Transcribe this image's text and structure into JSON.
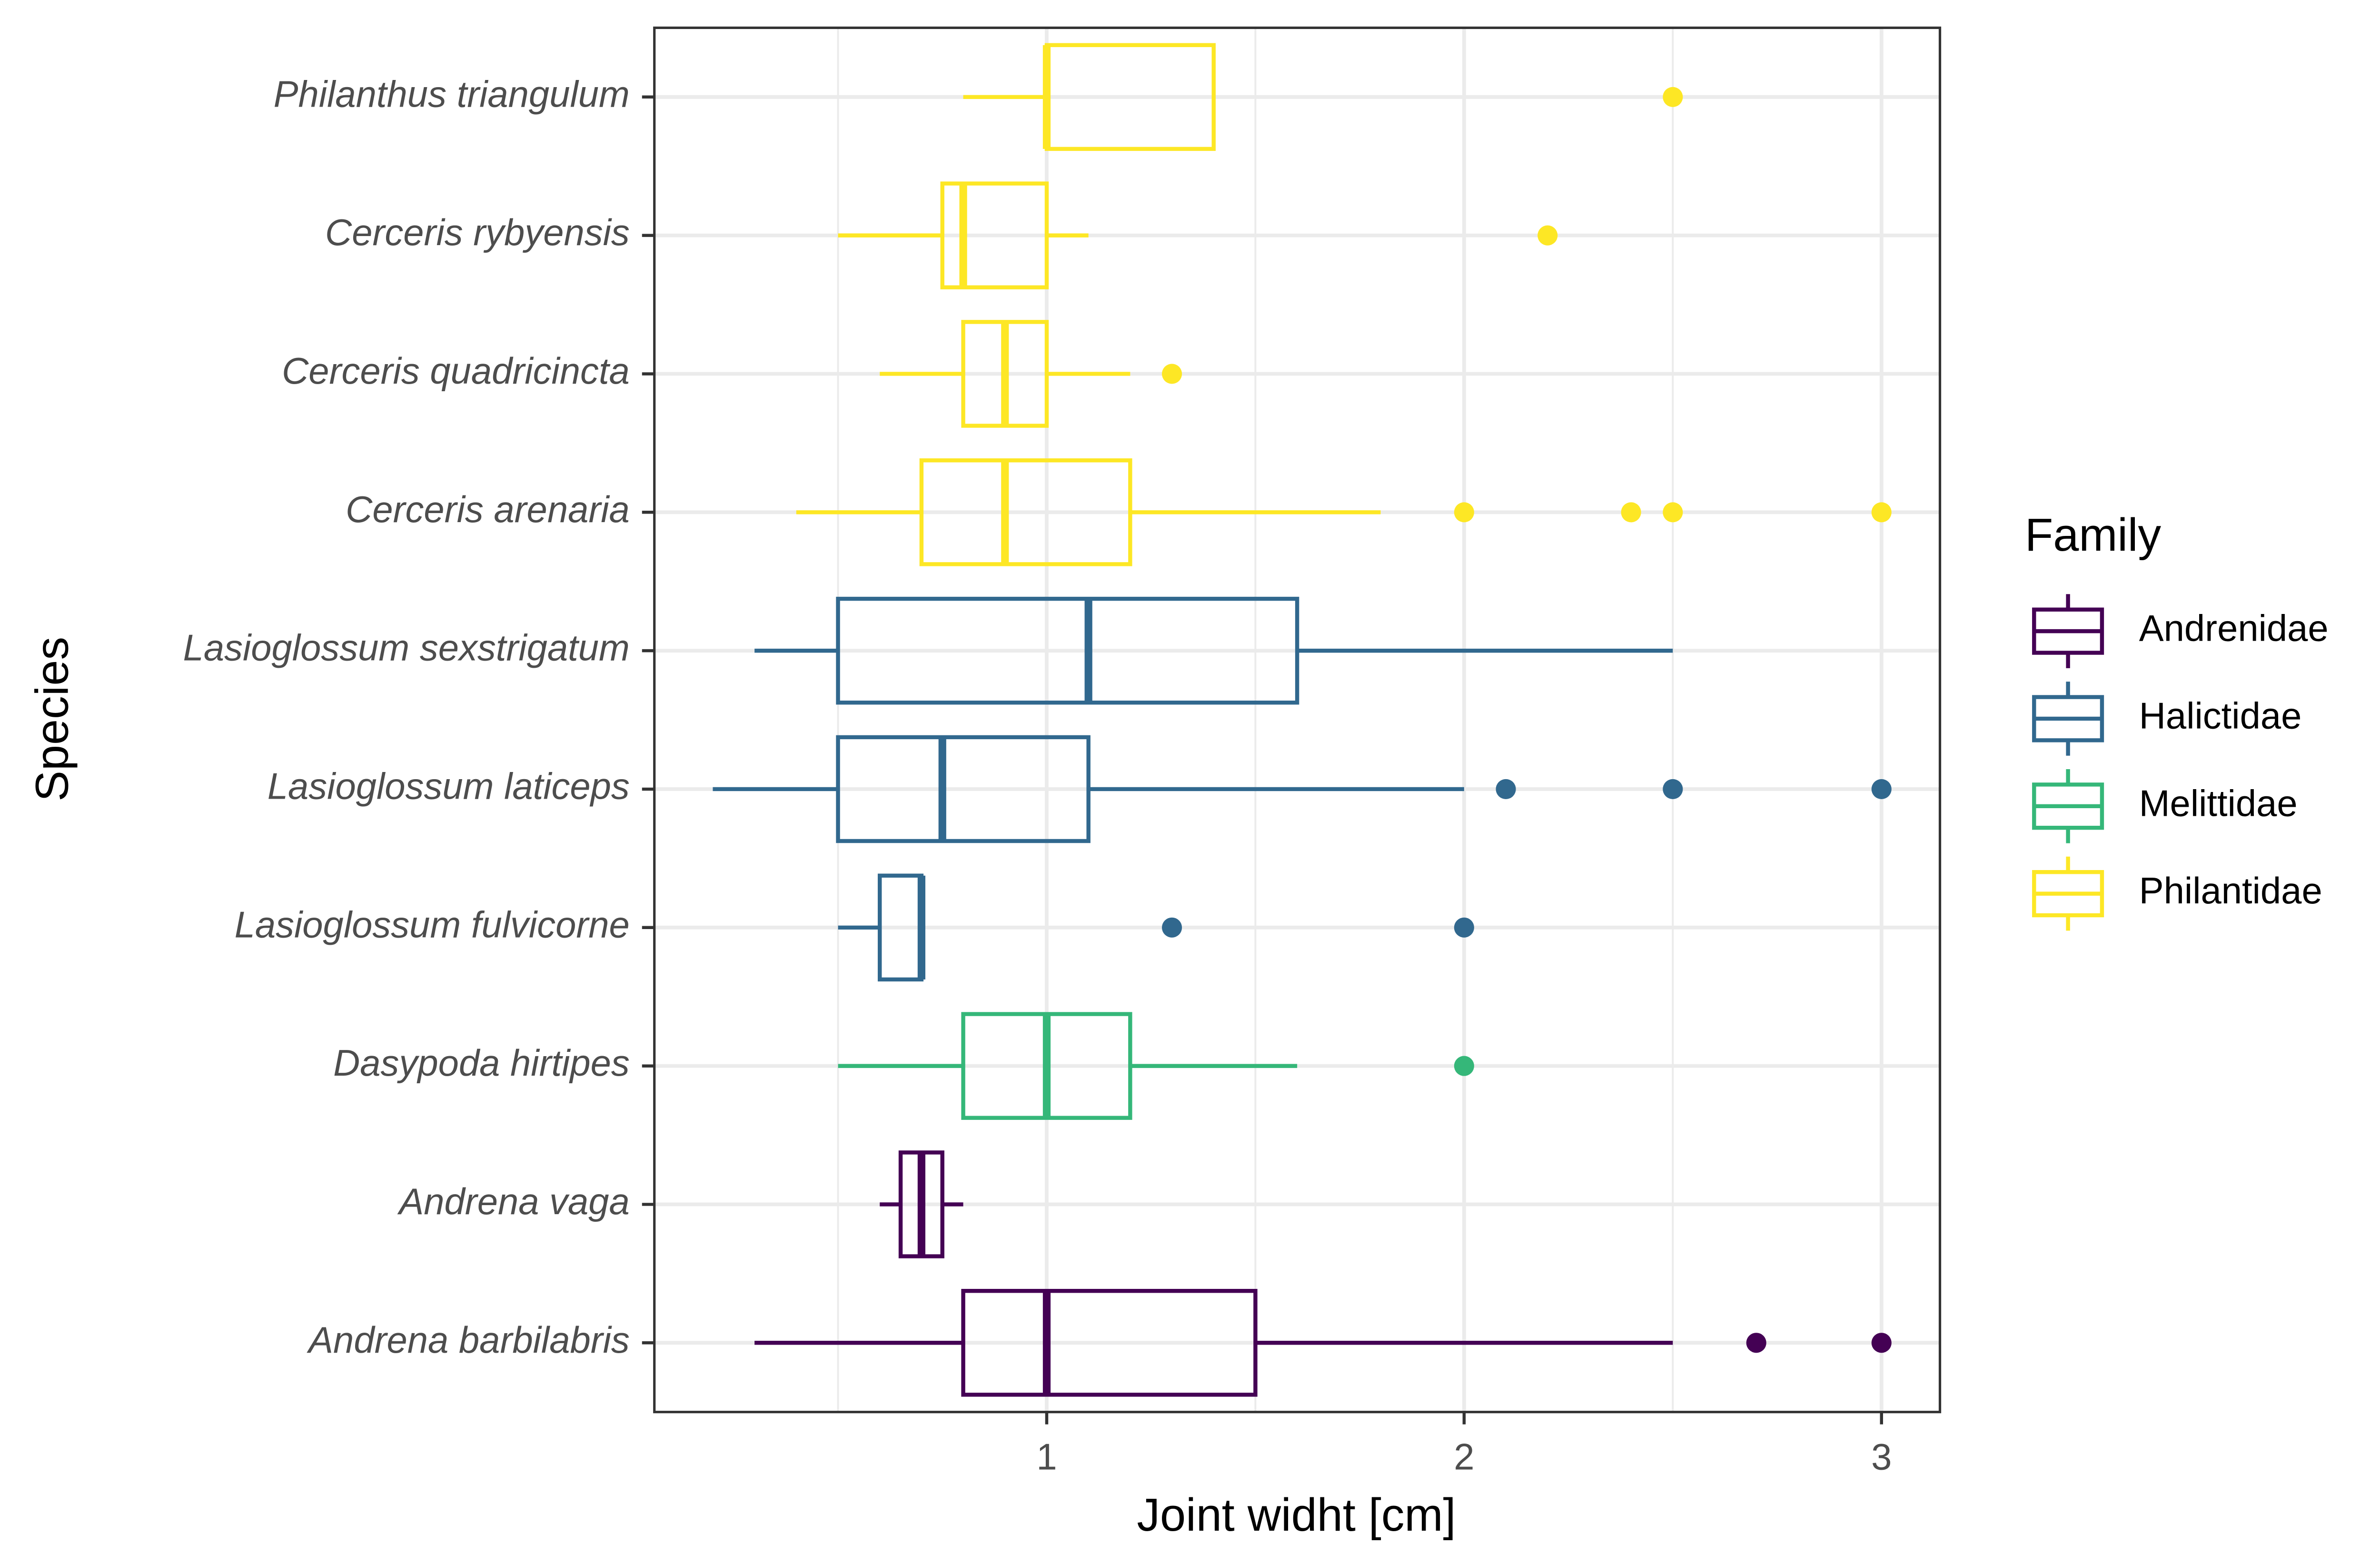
{
  "chart_data": {
    "type": "boxplot",
    "x_label": "Joint widht [cm]",
    "y_label": "Species",
    "legend_title": "Family",
    "legend_position": "right",
    "grid": true,
    "xlim": [
      0.06,
      3.14
    ],
    "xticks": [
      1,
      2,
      3
    ],
    "xminor_ticks": [
      0.5,
      1.5,
      2.5
    ],
    "categories": [
      "Andrena barbilabris",
      "Andrena vaga",
      "Dasypoda hirtipes",
      "Lasioglossum fulvicorne",
      "Lasioglossum laticeps",
      "Lasioglossum sexstrigatum",
      "Cerceris arenaria",
      "Cerceris quadricincta",
      "Cerceris rybyensis",
      "Philanthus triangulum"
    ],
    "series": [
      {
        "name": "Andrenidae",
        "color": "#440154",
        "values": [
          {
            "min": 0.3,
            "q1": 0.8,
            "median": 1.0,
            "q3": 1.5,
            "max": 2.5,
            "outliers": [
              2.7,
              3.0
            ]
          },
          {
            "min": 0.6,
            "q1": 0.65,
            "median": 0.7,
            "q3": 0.75,
            "max": 0.8,
            "outliers": []
          },
          null,
          null,
          null,
          null,
          null,
          null,
          null,
          null
        ]
      },
      {
        "name": "Halictidae",
        "color": "#31688E",
        "values": [
          null,
          null,
          null,
          {
            "min": 0.5,
            "q1": 0.6,
            "median": 0.7,
            "q3": 0.7,
            "max": 0.7,
            "outliers": [
              1.3,
              2.0
            ]
          },
          {
            "min": 0.2,
            "q1": 0.5,
            "median": 0.75,
            "q3": 1.1,
            "max": 2.0,
            "outliers": [
              2.1,
              2.5,
              3.0
            ]
          },
          {
            "min": 0.3,
            "q1": 0.5,
            "median": 1.1,
            "q3": 1.6,
            "max": 2.5,
            "outliers": []
          },
          null,
          null,
          null,
          null
        ]
      },
      {
        "name": "Melittidae",
        "color": "#35B779",
        "values": [
          null,
          null,
          {
            "min": 0.5,
            "q1": 0.8,
            "median": 1.0,
            "q3": 1.2,
            "max": 1.6,
            "outliers": [
              2.0
            ]
          },
          null,
          null,
          null,
          null,
          null,
          null,
          null
        ]
      },
      {
        "name": "Philantidae",
        "color": "#FDE725",
        "values": [
          null,
          null,
          null,
          null,
          null,
          null,
          {
            "min": 0.4,
            "q1": 0.7,
            "median": 0.9,
            "q3": 1.2,
            "max": 1.8,
            "outliers": [
              2.0,
              2.4,
              2.5,
              3.0
            ]
          },
          {
            "min": 0.6,
            "q1": 0.8,
            "median": 0.9,
            "q3": 1.0,
            "max": 1.2,
            "outliers": [
              1.3
            ]
          },
          {
            "min": 0.5,
            "q1": 0.75,
            "median": 0.8,
            "q3": 1.0,
            "max": 1.1,
            "outliers": [
              2.2
            ]
          },
          {
            "min": 0.8,
            "q1": 1.0,
            "median": 1.0,
            "q3": 1.4,
            "max": 1.4,
            "outliers": [
              2.5
            ]
          }
        ]
      }
    ]
  }
}
